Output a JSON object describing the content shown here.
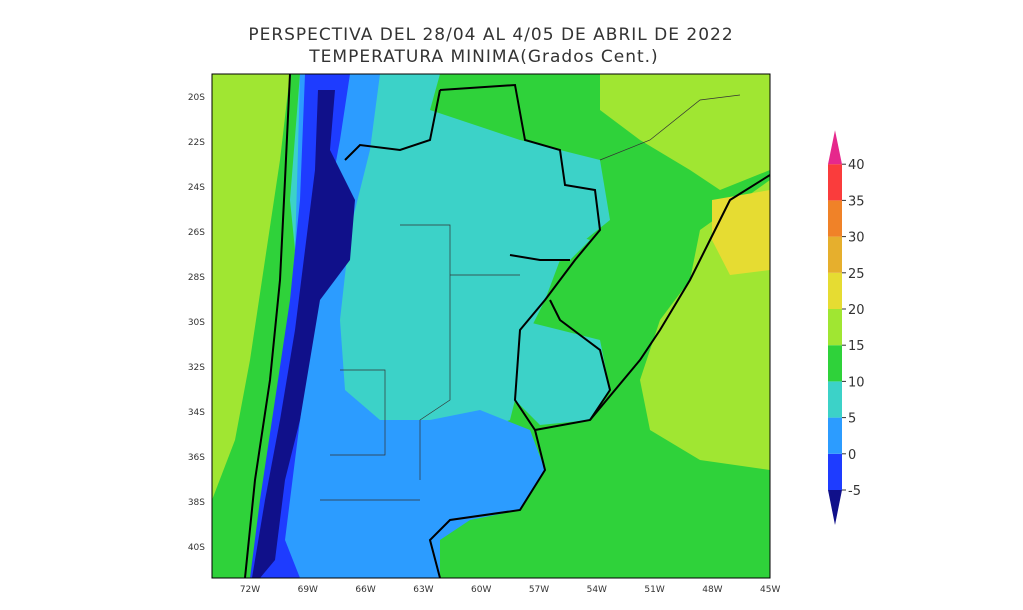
{
  "title": "PERSPECTIVA DEL 28/04 AL 4/05 DE ABRIL DE 2022",
  "subtitle": "TEMPERATURA MINIMA(Grados Cent.)",
  "lat_labels": [
    "20S",
    "22S",
    "24S",
    "26S",
    "28S",
    "30S",
    "32S",
    "34S",
    "36S",
    "38S",
    "40S"
  ],
  "lon_labels": [
    "72W",
    "69W",
    "66W",
    "63W",
    "60W",
    "57W",
    "54W",
    "51W",
    "48W",
    "45W"
  ],
  "legend": {
    "levels": [
      -5,
      0,
      5,
      10,
      15,
      20,
      25,
      30,
      35,
      40
    ],
    "colors": [
      "#10108a",
      "#1e3cff",
      "#2c9cff",
      "#3cd2c8",
      "#2fd23a",
      "#a0e632",
      "#e6dc32",
      "#e6af2d",
      "#f08228",
      "#fa3c3c",
      "#e6288c"
    ]
  }
}
